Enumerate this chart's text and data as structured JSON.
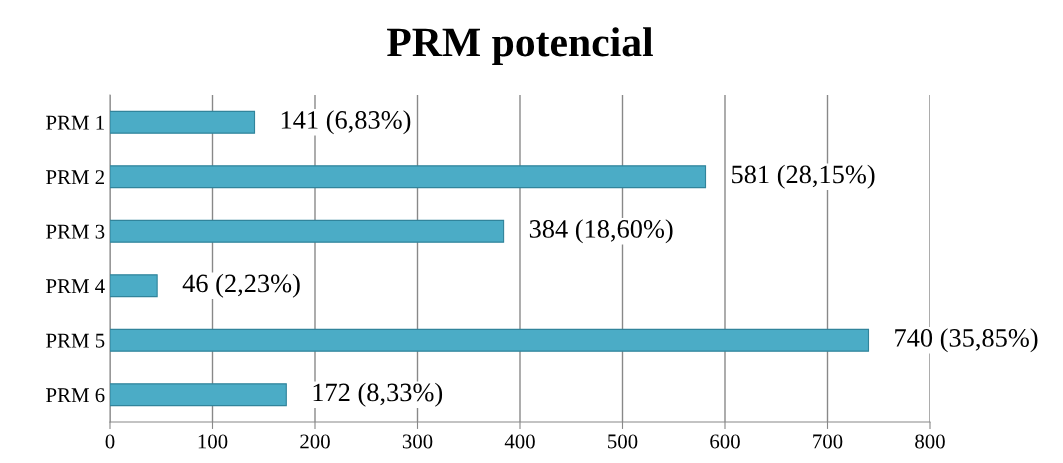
{
  "chart_data": {
    "type": "bar",
    "title": "PRM potencial",
    "orientation": "horizontal",
    "categories": [
      "PRM 1",
      "PRM 2",
      "PRM 3",
      "PRM 4",
      "PRM 5",
      "PRM 6"
    ],
    "values": [
      141,
      581,
      384,
      46,
      740,
      172
    ],
    "value_labels": [
      "141 (6,83%)",
      "581 (28,15%)",
      "384 (18,60%)",
      "46 (2,23%)",
      "740 (35,85%)",
      "172 (8,33%)"
    ],
    "color": "#4bacc6",
    "xlim": [
      0,
      800
    ],
    "xticks": [
      0,
      100,
      200,
      300,
      400,
      500,
      600,
      700,
      800
    ],
    "grid": "x",
    "legend": false
  }
}
